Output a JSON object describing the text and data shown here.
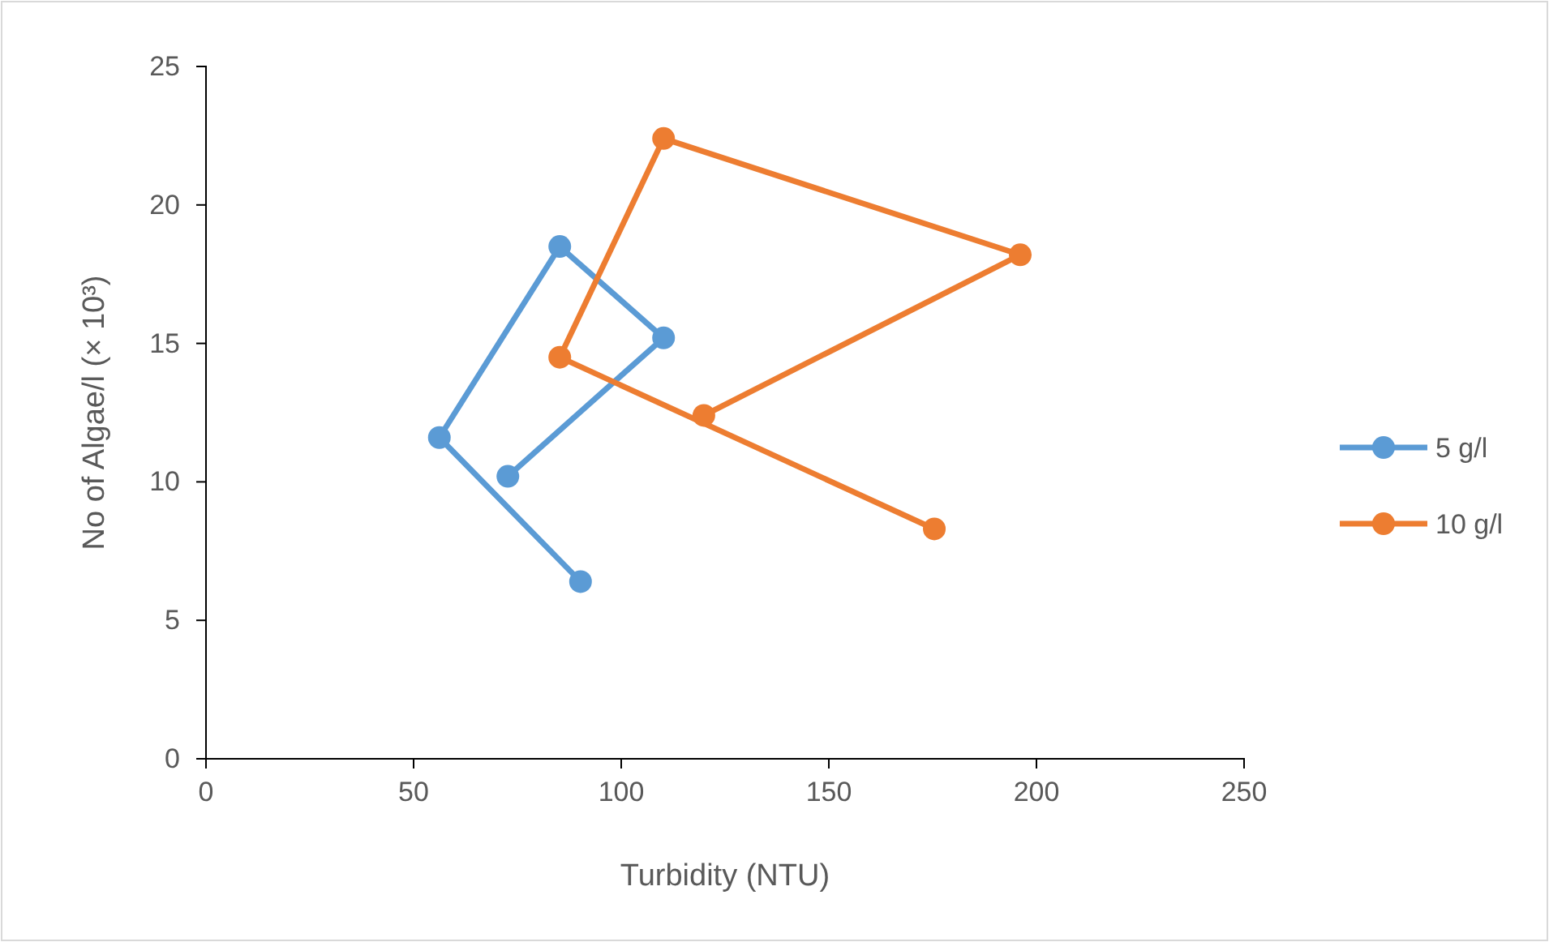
{
  "chart_data": {
    "type": "line",
    "xlabel": "Turbidity (NTU)",
    "ylabel": "No of Algae/l  (× 10³)",
    "xlim": [
      0,
      250
    ],
    "xticks": [
      0,
      50,
      100,
      150,
      200,
      250
    ],
    "ylim": [
      0,
      25
    ],
    "yticks": [
      0,
      5,
      10,
      15,
      20,
      25
    ],
    "marker": "circle",
    "legend": "right",
    "grid": false,
    "series": [
      {
        "name": "5 g/l",
        "color": "#5b9bd5",
        "x": [
          90.2,
          56.2,
          85.2,
          110.2,
          72.7
        ],
        "values": [
          6.4,
          11.6,
          18.5,
          15.2,
          10.2
        ]
      },
      {
        "name": "10 g/l",
        "color": "#ed7d31",
        "x": [
          175.4,
          85.2,
          110.2,
          196.1,
          119.9
        ],
        "values": [
          8.3,
          14.5,
          22.4,
          18.2,
          12.4
        ]
      }
    ]
  }
}
